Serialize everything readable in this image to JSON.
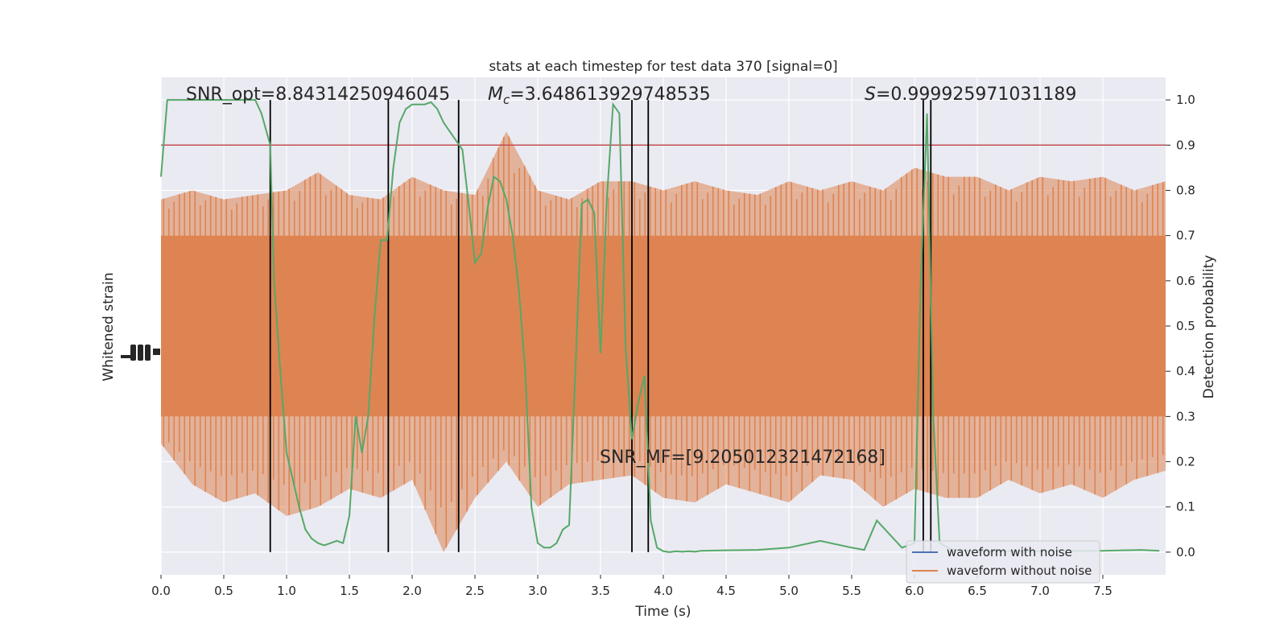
{
  "chart_data": {
    "type": "line",
    "title": "stats at each timestep for test data 370 [signal=0]",
    "xlabel": "Time (s)",
    "ylabel_left": "Whitened strain",
    "ylabel_right": "Detection probability",
    "xlim": [
      0,
      8.0
    ],
    "ylim_right": [
      -0.05,
      1.05
    ],
    "x_ticks": [
      "0.0",
      "0.5",
      "1.0",
      "1.5",
      "2.0",
      "2.5",
      "3.0",
      "3.5",
      "4.0",
      "4.5",
      "5.0",
      "5.5",
      "6.0",
      "6.5",
      "7.0",
      "7.5"
    ],
    "y_ticks_right": [
      "0.0",
      "0.1",
      "0.2",
      "0.3",
      "0.4",
      "0.5",
      "0.6",
      "0.7",
      "0.8",
      "0.9",
      "1.0"
    ],
    "grid": true,
    "threshold": 0.9,
    "vertical_lines": [
      0.87,
      1.81,
      2.37,
      3.75,
      3.88,
      6.07,
      6.13
    ],
    "annotations": {
      "snr_opt": "SNR_opt=8.84314250946045",
      "mc_symbol": "M",
      "mc_sub": "c",
      "mc_value": "=3.648613929748535",
      "s_symbol": "S",
      "s_value": "=0.999925971031189",
      "snr_mf": "SNR_MF=[9.205012321472168]"
    },
    "legend": {
      "placement": "lower-right",
      "entries": [
        {
          "label": "waveform with noise",
          "color": "#4c72b0"
        },
        {
          "label": "waveform without noise",
          "color": "#dd8452"
        }
      ]
    },
    "series": [
      {
        "role": "detection probability",
        "color": "#55a868",
        "x": [
          0.0,
          0.05,
          0.1,
          0.15,
          0.2,
          0.25,
          0.3,
          0.35,
          0.4,
          0.45,
          0.5,
          0.55,
          0.6,
          0.65,
          0.7,
          0.75,
          0.8,
          0.85,
          0.87,
          0.9,
          0.95,
          1.0,
          1.05,
          1.1,
          1.15,
          1.2,
          1.25,
          1.3,
          1.35,
          1.4,
          1.45,
          1.5,
          1.55,
          1.6,
          1.65,
          1.7,
          1.75,
          1.8,
          1.85,
          1.9,
          1.95,
          2.0,
          2.05,
          2.1,
          2.15,
          2.2,
          2.25,
          2.3,
          2.35,
          2.4,
          2.45,
          2.5,
          2.55,
          2.6,
          2.65,
          2.7,
          2.75,
          2.8,
          2.85,
          2.9,
          2.95,
          3.0,
          3.05,
          3.1,
          3.15,
          3.2,
          3.25,
          3.3,
          3.35,
          3.4,
          3.45,
          3.5,
          3.55,
          3.6,
          3.65,
          3.7,
          3.75,
          3.8,
          3.85,
          3.9,
          3.95,
          4.0,
          4.05,
          4.1,
          4.15,
          4.2,
          4.25,
          4.3,
          4.5,
          4.75,
          5.0,
          5.25,
          5.5,
          5.6,
          5.7,
          5.8,
          5.9,
          6.0,
          6.05,
          6.1,
          6.15,
          6.2,
          6.3,
          6.5,
          7.0,
          7.5,
          7.8,
          7.95
        ],
        "values": [
          0.83,
          1.0,
          1.0,
          1.0,
          1.0,
          1.0,
          1.0,
          1.0,
          1.0,
          1.0,
          1.0,
          1.0,
          1.0,
          1.0,
          1.0,
          1.0,
          0.97,
          0.92,
          0.9,
          0.6,
          0.4,
          0.22,
          0.16,
          0.1,
          0.05,
          0.03,
          0.02,
          0.015,
          0.02,
          0.025,
          0.02,
          0.08,
          0.3,
          0.22,
          0.3,
          0.52,
          0.69,
          0.69,
          0.85,
          0.95,
          0.98,
          0.99,
          0.99,
          0.99,
          0.995,
          0.98,
          0.95,
          0.93,
          0.91,
          0.89,
          0.77,
          0.64,
          0.66,
          0.76,
          0.83,
          0.82,
          0.78,
          0.7,
          0.58,
          0.4,
          0.1,
          0.02,
          0.01,
          0.01,
          0.02,
          0.05,
          0.06,
          0.4,
          0.77,
          0.78,
          0.75,
          0.44,
          0.78,
          0.99,
          0.97,
          0.45,
          0.25,
          0.33,
          0.39,
          0.07,
          0.01,
          0.002,
          0.0,
          0.002,
          0.001,
          0.002,
          0.001,
          0.003,
          0.004,
          0.005,
          0.01,
          0.025,
          0.01,
          0.005,
          0.07,
          0.04,
          0.01,
          0.02,
          0.6,
          0.97,
          0.3,
          0.02,
          0.005,
          0.002,
          0.002,
          0.003,
          0.005,
          0.003
        ]
      },
      {
        "role": "waveform without noise",
        "color": "#dd8452",
        "x": [
          0.0,
          0.25,
          0.5,
          0.75,
          1.0,
          1.25,
          1.5,
          1.75,
          2.0,
          2.25,
          2.5,
          2.75,
          3.0,
          3.25,
          3.5,
          3.75,
          4.0,
          4.25,
          4.5,
          4.75,
          5.0,
          5.25,
          5.5,
          5.75,
          6.0,
          6.25,
          6.5,
          6.75,
          7.0,
          7.25,
          7.5,
          7.75,
          8.0
        ],
        "upper": [
          0.78,
          0.8,
          0.78,
          0.79,
          0.8,
          0.84,
          0.79,
          0.78,
          0.83,
          0.8,
          0.79,
          0.93,
          0.8,
          0.78,
          0.82,
          0.82,
          0.8,
          0.82,
          0.8,
          0.79,
          0.82,
          0.8,
          0.82,
          0.8,
          0.85,
          0.83,
          0.83,
          0.8,
          0.83,
          0.82,
          0.83,
          0.8,
          0.82
        ],
        "lower": [
          0.24,
          0.15,
          0.11,
          0.13,
          0.08,
          0.1,
          0.14,
          0.12,
          0.16,
          0.0,
          0.12,
          0.2,
          0.1,
          0.15,
          0.16,
          0.17,
          0.12,
          0.11,
          0.15,
          0.13,
          0.11,
          0.17,
          0.16,
          0.1,
          0.14,
          0.12,
          0.12,
          0.16,
          0.13,
          0.15,
          0.12,
          0.16,
          0.18
        ],
        "core_upper": 0.7,
        "core_lower": 0.3
      }
    ]
  }
}
